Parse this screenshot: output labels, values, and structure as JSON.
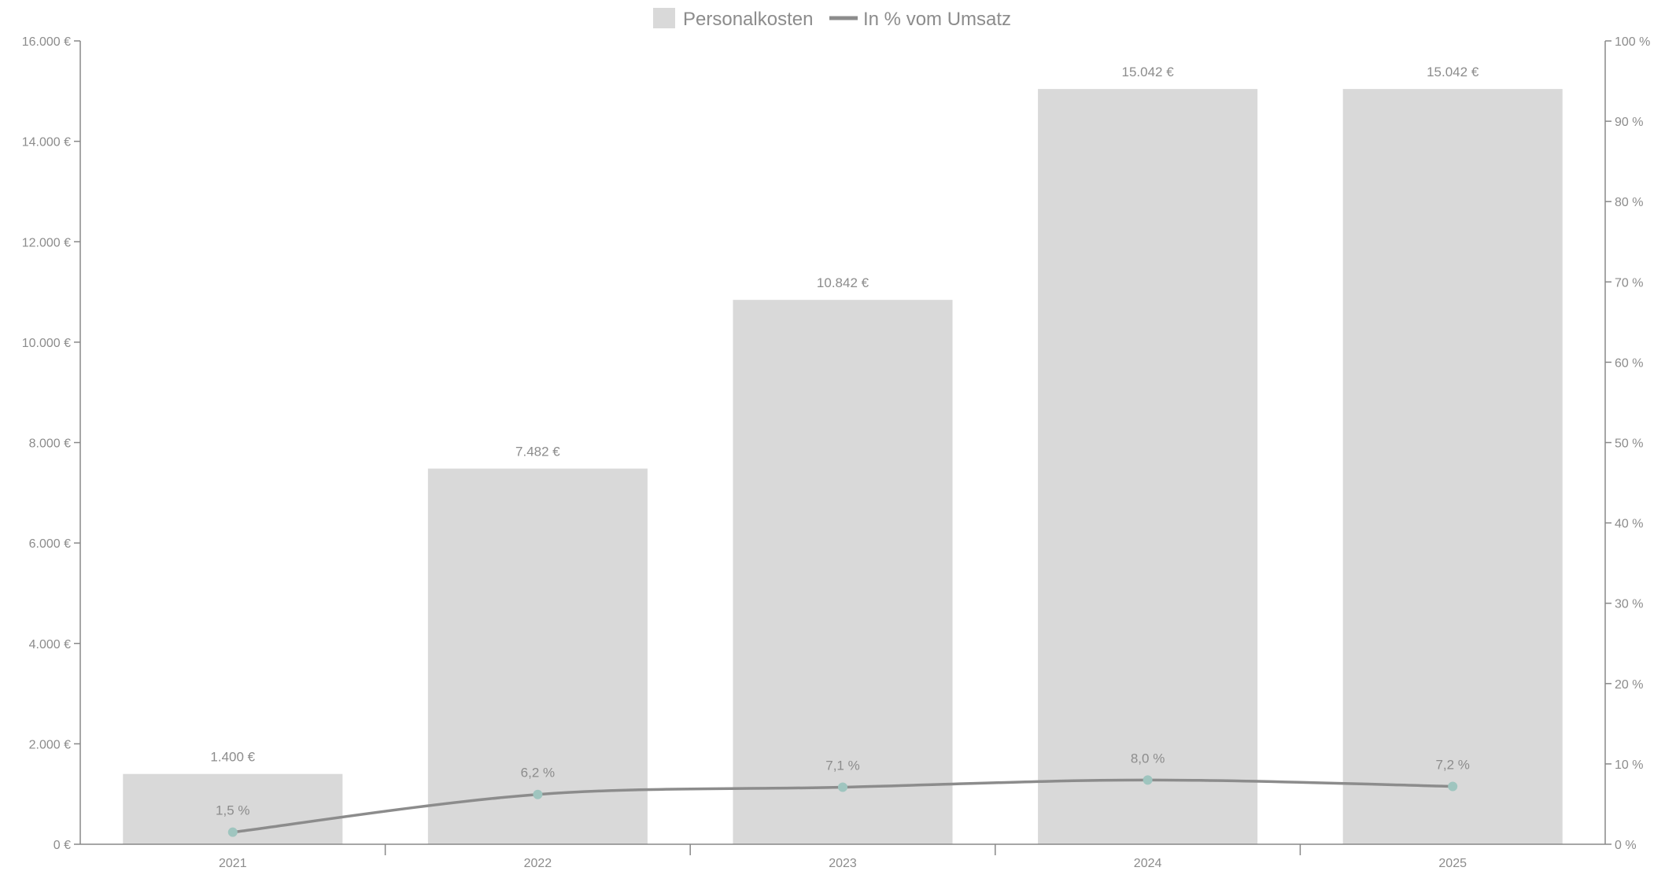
{
  "chart_data": {
    "type": "bar",
    "categories": [
      "2021",
      "2022",
      "2023",
      "2024",
      "2025"
    ],
    "series": [
      {
        "name": "Personalkosten",
        "type": "bar",
        "axis": "left",
        "values": [
          1400,
          7482,
          10842,
          15042,
          15042
        ],
        "value_labels": [
          "1.400 €",
          "7.482 €",
          "10.842 €",
          "15.042 €",
          "15.042 €"
        ],
        "color": "#d9d9d9"
      },
      {
        "name": "In % vom Umsatz",
        "type": "line",
        "axis": "right",
        "values": [
          1.5,
          6.2,
          7.1,
          8.0,
          7.2
        ],
        "value_labels": [
          "1,5 %",
          "6,2 %",
          "7,1 %",
          "8,0 %",
          "7,2 %"
        ],
        "color": "#8c8c8c",
        "marker_color": "#9fc5bf"
      }
    ],
    "y_left": {
      "min": 0,
      "max": 16000,
      "ticks": [
        0,
        2000,
        4000,
        6000,
        8000,
        10000,
        12000,
        14000,
        16000
      ],
      "tick_labels": [
        "0 €",
        "2.000 €",
        "4.000 €",
        "6.000 €",
        "8.000 €",
        "10.000 €",
        "12.000 €",
        "14.000 €",
        "16.000 €"
      ]
    },
    "y_right": {
      "min": 0,
      "max": 100,
      "ticks": [
        0,
        10,
        20,
        30,
        40,
        50,
        60,
        70,
        80,
        90,
        100
      ],
      "tick_labels": [
        "0 %",
        "10 %",
        "20 %",
        "30 %",
        "40 %",
        "50 %",
        "60 %",
        "70 %",
        "80 %",
        "90 %",
        "100 %"
      ]
    },
    "legend": {
      "position": "top-center",
      "entries": [
        "Personalkosten",
        "In % vom Umsatz"
      ]
    },
    "grid": false,
    "title": "",
    "xlabel": "",
    "ylabel": ""
  }
}
